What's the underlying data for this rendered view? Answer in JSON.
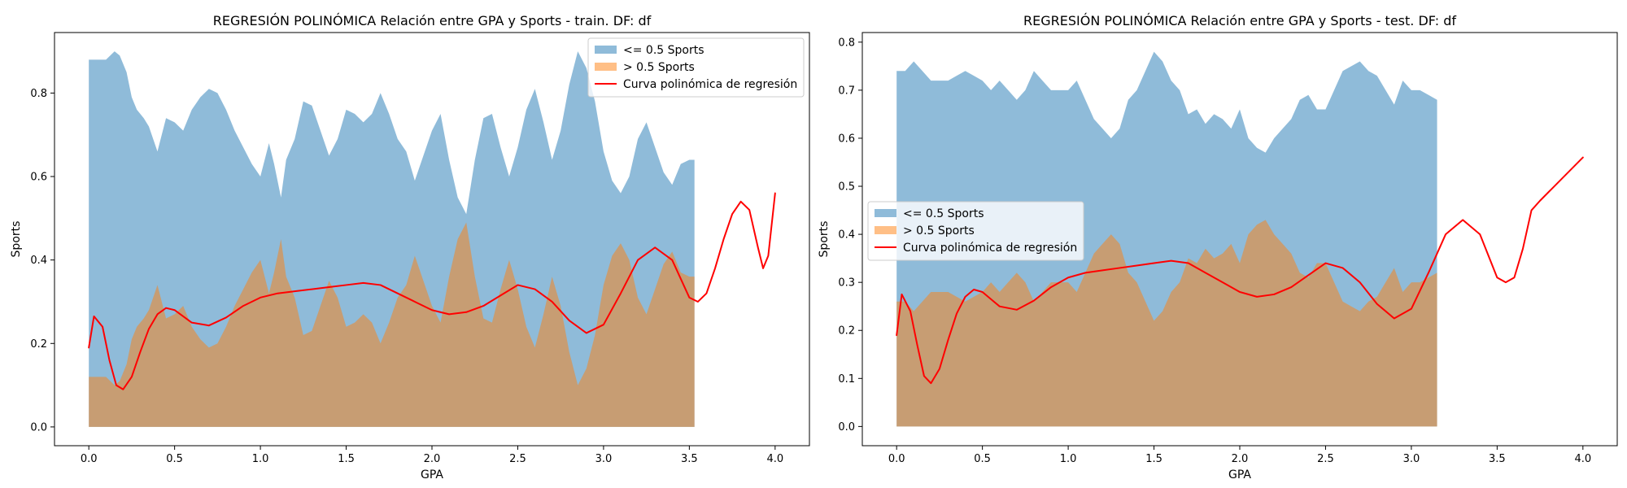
{
  "chart_data": [
    {
      "type": "area",
      "title": "REGRESIÓN POLINÓMICA Relación entre GPA y Sports - train. DF: df",
      "xlabel": "GPA",
      "ylabel": "Sports",
      "xlim": [
        -0.2,
        4.2
      ],
      "ylim": [
        -0.045,
        0.945
      ],
      "xticks": [
        0.0,
        0.5,
        1.0,
        1.5,
        2.0,
        2.5,
        3.0,
        3.5,
        4.0
      ],
      "xtick_labels": [
        "0.0",
        "0.5",
        "1.0",
        "1.5",
        "2.0",
        "2.5",
        "3.0",
        "3.5",
        "4.0"
      ],
      "yticks": [
        0.0,
        0.2,
        0.4,
        0.6,
        0.8
      ],
      "ytick_labels": [
        "0.0",
        "0.2",
        "0.4",
        "0.6",
        "0.8"
      ],
      "grid": false,
      "legend": {
        "placement": "top-right"
      },
      "series": [
        {
          "name": "<= 0.5 Sports",
          "kind": "area",
          "color": "#1f77b4",
          "opacity": 0.5,
          "x": [
            0.0,
            0.05,
            0.1,
            0.15,
            0.18,
            0.22,
            0.25,
            0.28,
            0.32,
            0.35,
            0.4,
            0.45,
            0.5,
            0.55,
            0.6,
            0.65,
            0.7,
            0.75,
            0.8,
            0.85,
            0.9,
            0.95,
            1.0,
            1.05,
            1.08,
            1.12,
            1.15,
            1.2,
            1.25,
            1.3,
            1.35,
            1.4,
            1.45,
            1.5,
            1.55,
            1.6,
            1.65,
            1.7,
            1.75,
            1.8,
            1.85,
            1.9,
            1.95,
            2.0,
            2.05,
            2.1,
            2.15,
            2.2,
            2.25,
            2.3,
            2.35,
            2.4,
            2.45,
            2.5,
            2.55,
            2.6,
            2.65,
            2.7,
            2.75,
            2.8,
            2.85,
            2.9,
            2.95,
            3.0,
            3.05,
            3.1,
            3.15,
            3.2,
            3.25,
            3.3,
            3.35,
            3.4,
            3.45,
            3.5,
            3.53
          ],
          "values": [
            0.88,
            0.88,
            0.88,
            0.9,
            0.89,
            0.85,
            0.79,
            0.76,
            0.74,
            0.72,
            0.66,
            0.74,
            0.73,
            0.71,
            0.76,
            0.79,
            0.81,
            0.8,
            0.76,
            0.71,
            0.67,
            0.63,
            0.6,
            0.68,
            0.63,
            0.55,
            0.64,
            0.69,
            0.78,
            0.77,
            0.71,
            0.65,
            0.69,
            0.76,
            0.75,
            0.73,
            0.75,
            0.8,
            0.75,
            0.69,
            0.66,
            0.59,
            0.65,
            0.71,
            0.75,
            0.64,
            0.55,
            0.51,
            0.64,
            0.74,
            0.75,
            0.67,
            0.6,
            0.67,
            0.76,
            0.81,
            0.73,
            0.64,
            0.71,
            0.82,
            0.9,
            0.86,
            0.78,
            0.66,
            0.59,
            0.56,
            0.6,
            0.69,
            0.73,
            0.67,
            0.61,
            0.58,
            0.63,
            0.64,
            0.64
          ]
        },
        {
          "name": "> 0.5 Sports",
          "kind": "area",
          "color": "#ff7f0e",
          "opacity": 0.5,
          "x": [
            0.0,
            0.05,
            0.1,
            0.15,
            0.18,
            0.22,
            0.25,
            0.28,
            0.32,
            0.35,
            0.4,
            0.45,
            0.5,
            0.55,
            0.6,
            0.65,
            0.7,
            0.75,
            0.8,
            0.85,
            0.9,
            0.95,
            1.0,
            1.05,
            1.08,
            1.12,
            1.15,
            1.2,
            1.25,
            1.3,
            1.35,
            1.4,
            1.45,
            1.5,
            1.55,
            1.6,
            1.65,
            1.7,
            1.75,
            1.8,
            1.85,
            1.9,
            1.95,
            2.0,
            2.05,
            2.1,
            2.15,
            2.2,
            2.25,
            2.3,
            2.35,
            2.4,
            2.45,
            2.5,
            2.55,
            2.6,
            2.65,
            2.7,
            2.75,
            2.8,
            2.85,
            2.9,
            2.95,
            3.0,
            3.05,
            3.1,
            3.15,
            3.2,
            3.25,
            3.3,
            3.35,
            3.4,
            3.45,
            3.5,
            3.53
          ],
          "values": [
            0.12,
            0.12,
            0.12,
            0.1,
            0.11,
            0.15,
            0.21,
            0.24,
            0.26,
            0.28,
            0.34,
            0.26,
            0.27,
            0.29,
            0.24,
            0.21,
            0.19,
            0.2,
            0.24,
            0.29,
            0.33,
            0.37,
            0.4,
            0.32,
            0.37,
            0.45,
            0.36,
            0.31,
            0.22,
            0.23,
            0.29,
            0.35,
            0.31,
            0.24,
            0.25,
            0.27,
            0.25,
            0.2,
            0.25,
            0.31,
            0.34,
            0.41,
            0.35,
            0.29,
            0.25,
            0.36,
            0.45,
            0.49,
            0.36,
            0.26,
            0.25,
            0.33,
            0.4,
            0.33,
            0.24,
            0.19,
            0.27,
            0.36,
            0.29,
            0.18,
            0.1,
            0.14,
            0.22,
            0.34,
            0.41,
            0.44,
            0.4,
            0.31,
            0.27,
            0.33,
            0.39,
            0.42,
            0.37,
            0.36,
            0.36
          ]
        },
        {
          "name": "Curva polinómica de regresión",
          "kind": "line",
          "color": "#ff0000",
          "x": [
            0.0,
            0.03,
            0.08,
            0.12,
            0.16,
            0.2,
            0.25,
            0.3,
            0.35,
            0.4,
            0.45,
            0.5,
            0.55,
            0.6,
            0.7,
            0.8,
            0.9,
            1.0,
            1.1,
            1.2,
            1.3,
            1.4,
            1.5,
            1.6,
            1.7,
            1.8,
            1.9,
            2.0,
            2.1,
            2.2,
            2.3,
            2.4,
            2.5,
            2.6,
            2.7,
            2.8,
            2.9,
            3.0,
            3.1,
            3.2,
            3.3,
            3.4,
            3.5,
            3.55,
            3.6,
            3.65,
            3.7,
            3.75,
            3.8,
            3.85,
            3.9,
            3.93,
            3.96,
            4.0
          ],
          "values": [
            0.19,
            0.265,
            0.24,
            0.16,
            0.1,
            0.09,
            0.12,
            0.18,
            0.235,
            0.27,
            0.285,
            0.28,
            0.265,
            0.25,
            0.243,
            0.262,
            0.29,
            0.31,
            0.32,
            0.325,
            0.33,
            0.335,
            0.34,
            0.345,
            0.34,
            0.32,
            0.3,
            0.28,
            0.27,
            0.275,
            0.29,
            0.315,
            0.34,
            0.33,
            0.3,
            0.255,
            0.225,
            0.245,
            0.32,
            0.4,
            0.43,
            0.4,
            0.31,
            0.3,
            0.32,
            0.38,
            0.45,
            0.51,
            0.54,
            0.52,
            0.43,
            0.38,
            0.41,
            0.56
          ]
        }
      ]
    },
    {
      "type": "area",
      "title": "REGRESIÓN POLINÓMICA Relación entre GPA y Sports - test. DF: df",
      "xlabel": "GPA",
      "ylabel": "Sports",
      "xlim": [
        -0.2,
        4.2
      ],
      "ylim": [
        -0.04,
        0.82
      ],
      "xticks": [
        0.0,
        0.5,
        1.0,
        1.5,
        2.0,
        2.5,
        3.0,
        3.5,
        4.0
      ],
      "xtick_labels": [
        "0.0",
        "0.5",
        "1.0",
        "1.5",
        "2.0",
        "2.5",
        "3.0",
        "3.5",
        "4.0"
      ],
      "yticks": [
        0.0,
        0.1,
        0.2,
        0.3,
        0.4,
        0.5,
        0.6,
        0.7,
        0.8
      ],
      "ytick_labels": [
        "0.0",
        "0.1",
        "0.2",
        "0.3",
        "0.4",
        "0.5",
        "0.6",
        "0.7",
        "0.8"
      ],
      "grid": false,
      "legend": {
        "placement": "center-left"
      },
      "series": [
        {
          "name": "<= 0.5 Sports",
          "kind": "area",
          "color": "#1f77b4",
          "opacity": 0.5,
          "x": [
            0.0,
            0.05,
            0.1,
            0.15,
            0.2,
            0.25,
            0.3,
            0.35,
            0.4,
            0.45,
            0.5,
            0.55,
            0.6,
            0.65,
            0.7,
            0.75,
            0.8,
            0.85,
            0.9,
            0.95,
            1.0,
            1.05,
            1.1,
            1.15,
            1.2,
            1.25,
            1.3,
            1.35,
            1.4,
            1.45,
            1.5,
            1.55,
            1.6,
            1.65,
            1.7,
            1.75,
            1.8,
            1.85,
            1.9,
            1.95,
            2.0,
            2.05,
            2.1,
            2.15,
            2.2,
            2.25,
            2.3,
            2.35,
            2.4,
            2.45,
            2.5,
            2.55,
            2.6,
            2.65,
            2.7,
            2.75,
            2.8,
            2.85,
            2.9,
            2.95,
            3.0,
            3.05,
            3.1,
            3.15
          ],
          "values": [
            0.74,
            0.74,
            0.76,
            0.74,
            0.72,
            0.72,
            0.72,
            0.73,
            0.74,
            0.73,
            0.72,
            0.7,
            0.72,
            0.7,
            0.68,
            0.7,
            0.74,
            0.72,
            0.7,
            0.7,
            0.7,
            0.72,
            0.68,
            0.64,
            0.62,
            0.6,
            0.62,
            0.68,
            0.7,
            0.74,
            0.78,
            0.76,
            0.72,
            0.7,
            0.65,
            0.66,
            0.63,
            0.65,
            0.64,
            0.62,
            0.66,
            0.6,
            0.58,
            0.57,
            0.6,
            0.62,
            0.64,
            0.68,
            0.69,
            0.66,
            0.66,
            0.7,
            0.74,
            0.75,
            0.76,
            0.74,
            0.73,
            0.7,
            0.67,
            0.72,
            0.7,
            0.7,
            0.69,
            0.68
          ]
        },
        {
          "name": "> 0.5 Sports",
          "kind": "area",
          "color": "#ff7f0e",
          "opacity": 0.5,
          "x": [
            0.0,
            0.05,
            0.1,
            0.15,
            0.2,
            0.25,
            0.3,
            0.35,
            0.4,
            0.45,
            0.5,
            0.55,
            0.6,
            0.65,
            0.7,
            0.75,
            0.8,
            0.85,
            0.9,
            0.95,
            1.0,
            1.05,
            1.1,
            1.15,
            1.2,
            1.25,
            1.3,
            1.35,
            1.4,
            1.45,
            1.5,
            1.55,
            1.6,
            1.65,
            1.7,
            1.75,
            1.8,
            1.85,
            1.9,
            1.95,
            2.0,
            2.05,
            2.1,
            2.15,
            2.2,
            2.25,
            2.3,
            2.35,
            2.4,
            2.45,
            2.5,
            2.55,
            2.6,
            2.65,
            2.7,
            2.75,
            2.8,
            2.85,
            2.9,
            2.95,
            3.0,
            3.05,
            3.1,
            3.15
          ],
          "values": [
            0.26,
            0.26,
            0.24,
            0.26,
            0.28,
            0.28,
            0.28,
            0.27,
            0.26,
            0.27,
            0.28,
            0.3,
            0.28,
            0.3,
            0.32,
            0.3,
            0.26,
            0.28,
            0.3,
            0.3,
            0.3,
            0.28,
            0.32,
            0.36,
            0.38,
            0.4,
            0.38,
            0.32,
            0.3,
            0.26,
            0.22,
            0.24,
            0.28,
            0.3,
            0.35,
            0.34,
            0.37,
            0.35,
            0.36,
            0.38,
            0.34,
            0.4,
            0.42,
            0.43,
            0.4,
            0.38,
            0.36,
            0.32,
            0.31,
            0.34,
            0.34,
            0.3,
            0.26,
            0.25,
            0.24,
            0.26,
            0.27,
            0.3,
            0.33,
            0.28,
            0.3,
            0.3,
            0.31,
            0.32
          ]
        },
        {
          "name": "Curva polinómica de regresión",
          "kind": "line",
          "color": "#ff0000",
          "x": [
            0.0,
            0.03,
            0.08,
            0.12,
            0.16,
            0.2,
            0.25,
            0.3,
            0.35,
            0.4,
            0.45,
            0.5,
            0.55,
            0.6,
            0.7,
            0.8,
            0.9,
            1.0,
            1.1,
            1.2,
            1.3,
            1.4,
            1.5,
            1.6,
            1.7,
            1.8,
            1.9,
            2.0,
            2.1,
            2.2,
            2.3,
            2.4,
            2.5,
            2.6,
            2.7,
            2.8,
            2.9,
            3.0,
            3.1,
            3.2,
            3.3,
            3.4,
            3.5,
            3.55,
            3.6,
            3.65,
            3.7,
            3.75,
            4.0
          ],
          "values": [
            0.19,
            0.275,
            0.24,
            0.17,
            0.105,
            0.09,
            0.12,
            0.18,
            0.235,
            0.27,
            0.285,
            0.28,
            0.265,
            0.25,
            0.243,
            0.262,
            0.29,
            0.31,
            0.32,
            0.325,
            0.33,
            0.335,
            0.34,
            0.345,
            0.34,
            0.32,
            0.3,
            0.28,
            0.27,
            0.275,
            0.29,
            0.315,
            0.34,
            0.33,
            0.3,
            0.255,
            0.225,
            0.245,
            0.32,
            0.4,
            0.43,
            0.4,
            0.31,
            0.3,
            0.31,
            0.37,
            0.45,
            0.47,
            0.56
          ]
        }
      ]
    }
  ]
}
